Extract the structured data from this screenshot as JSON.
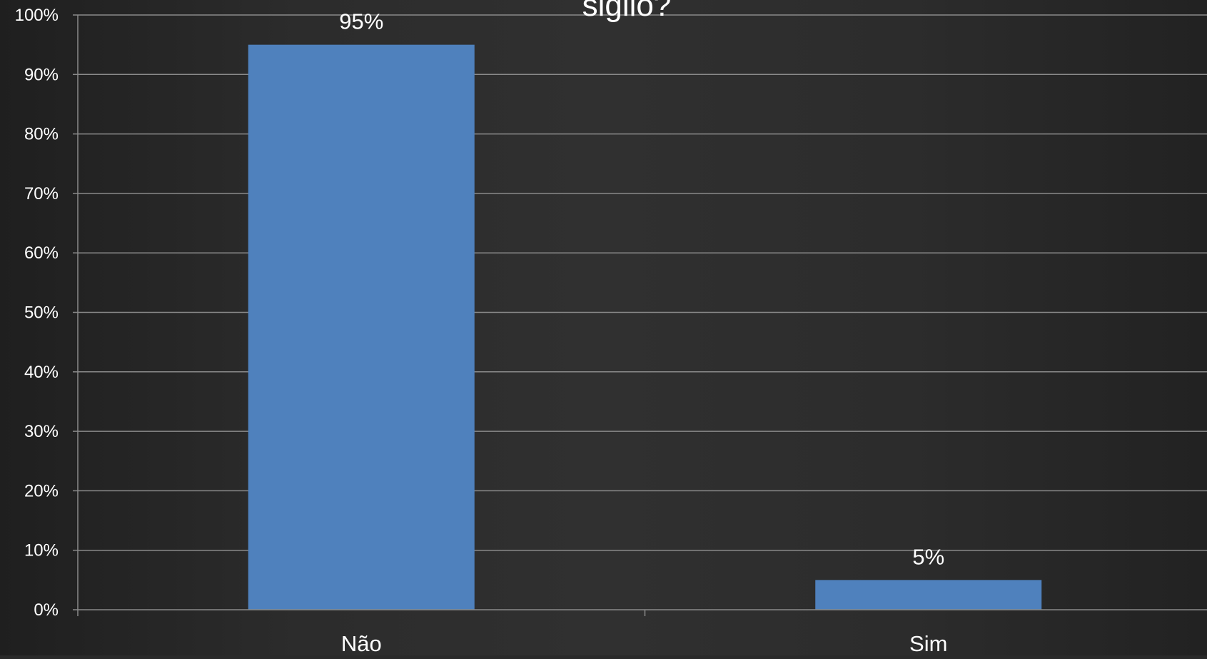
{
  "chart_data": {
    "type": "bar",
    "title": "sigilo?",
    "categories": [
      "Não",
      "Sim"
    ],
    "values": [
      95,
      5
    ],
    "data_labels": [
      "95%",
      "5%"
    ],
    "ylim": [
      0,
      100
    ],
    "y_ticks": [
      0,
      10,
      20,
      30,
      40,
      50,
      60,
      70,
      80,
      90,
      100
    ],
    "y_tick_labels": [
      "0%",
      "10%",
      "20%",
      "30%",
      "40%",
      "50%",
      "60%",
      "70%",
      "80%",
      "90%",
      "100%"
    ],
    "grid": true,
    "legend": "none",
    "colors": {
      "bar": "#4f81bd",
      "grid": "#8a8a8a",
      "text": "#ffffff",
      "background": "#2d2d2d"
    }
  }
}
